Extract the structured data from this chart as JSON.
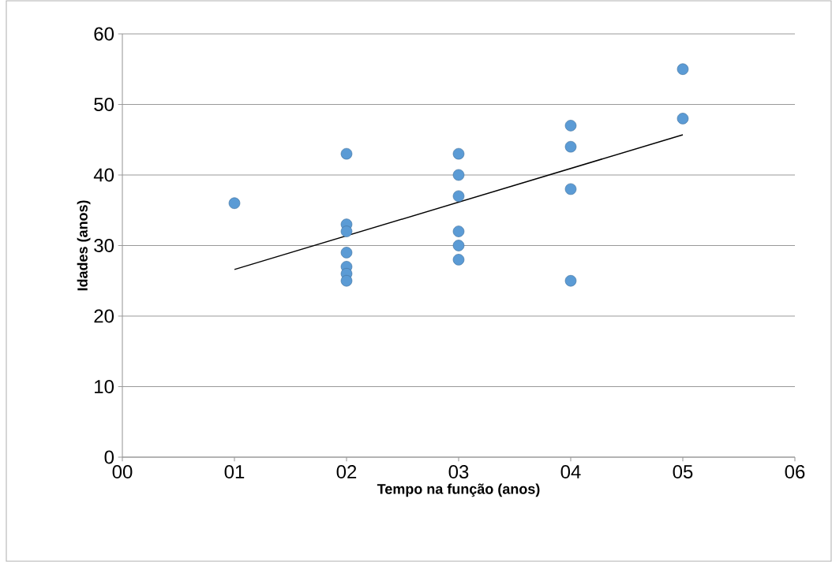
{
  "chart_data": {
    "type": "scatter",
    "xlabel": "Tempo na função (anos)",
    "ylabel": "Idades (anos)",
    "xlim": [
      0,
      6
    ],
    "ylim": [
      0,
      60
    ],
    "xticks": [
      {
        "value": 0,
        "label": "00"
      },
      {
        "value": 1,
        "label": "01"
      },
      {
        "value": 2,
        "label": "02"
      },
      {
        "value": 3,
        "label": "03"
      },
      {
        "value": 4,
        "label": "04"
      },
      {
        "value": 5,
        "label": "05"
      },
      {
        "value": 6,
        "label": "06"
      }
    ],
    "yticks": [
      0,
      10,
      20,
      30,
      40,
      50,
      60
    ],
    "grid": "y",
    "legend": false,
    "series": [
      {
        "marker": "circle",
        "color": "#5b9bd5",
        "x": [
          1,
          2,
          2,
          2,
          2,
          2,
          2,
          2,
          3,
          3,
          3,
          3,
          3,
          3,
          4,
          4,
          4,
          4,
          5,
          5
        ],
        "values": [
          36,
          43,
          33,
          32,
          29,
          27,
          26,
          25,
          43,
          40,
          37,
          32,
          30,
          28,
          47,
          44,
          38,
          25,
          55,
          48
        ]
      },
      {
        "type": "line",
        "marker": "none",
        "line_style": "solid",
        "color": "#000000",
        "x": [
          1,
          5
        ],
        "values": [
          26.6,
          45.7
        ]
      }
    ]
  }
}
